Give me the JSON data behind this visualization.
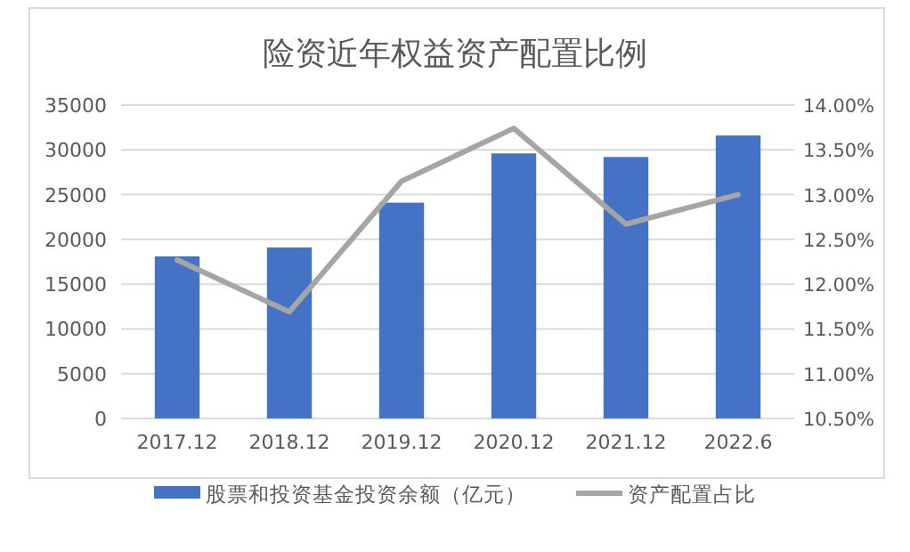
{
  "chart_data": {
    "type": "bar",
    "title": "险资近年权益资产配置比例",
    "categories": [
      "2017.12",
      "2018.12",
      "2019.12",
      "2020.12",
      "2021.12",
      "2022.6"
    ],
    "series": [
      {
        "name": "股票和投资基金投资余额（亿元）",
        "color": "#4472c4",
        "values": [
          18100,
          19100,
          24100,
          29600,
          29200,
          31600
        ]
      },
      {
        "name": "资产配置占比",
        "type": "line",
        "axis": "y2",
        "color": "#a5a5a5",
        "line_style": "solid",
        "marker": "none",
        "values": [
          12.27,
          11.69,
          13.15,
          13.74,
          12.67,
          13.0
        ]
      }
    ],
    "ylim": [
      0,
      35000
    ],
    "yticks": [
      0,
      5000,
      10000,
      15000,
      20000,
      25000,
      30000,
      35000
    ],
    "y2lim": [
      10.5,
      14
    ],
    "y2ticks": [
      {
        "value": 10.5,
        "label": "10.50%"
      },
      {
        "value": 11,
        "label": "11.00%"
      },
      {
        "value": 11.5,
        "label": "11.50%"
      },
      {
        "value": 12,
        "label": "12.00%"
      },
      {
        "value": 12.5,
        "label": "12.50%"
      },
      {
        "value": 13,
        "label": "13.00%"
      },
      {
        "value": 13.5,
        "label": "13.50%"
      },
      {
        "value": 14,
        "label": "14.00%"
      }
    ],
    "grid": "y",
    "legend": "bottom"
  }
}
